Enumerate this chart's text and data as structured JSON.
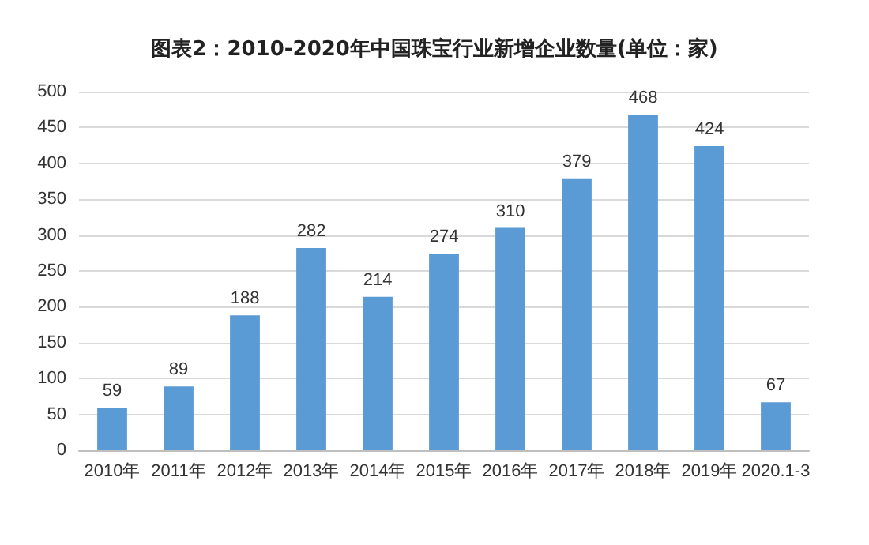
{
  "chart_data": {
    "type": "bar",
    "title": "图表2：2010-2020年中国珠宝行业新增企业数量(单位：家)",
    "categories": [
      "2010年",
      "2011年",
      "2012年",
      "2013年",
      "2014年",
      "2015年",
      "2016年",
      "2017年",
      "2018年",
      "2019年",
      "2020.1-3"
    ],
    "values": [
      59,
      89,
      188,
      282,
      214,
      274,
      310,
      379,
      468,
      424,
      67
    ],
    "color": "#5b9bd5",
    "ylim": [
      0,
      500
    ],
    "yticks": [
      0,
      50,
      100,
      150,
      200,
      250,
      300,
      350,
      400,
      450,
      500
    ],
    "grid": "y",
    "data_labels": true
  }
}
